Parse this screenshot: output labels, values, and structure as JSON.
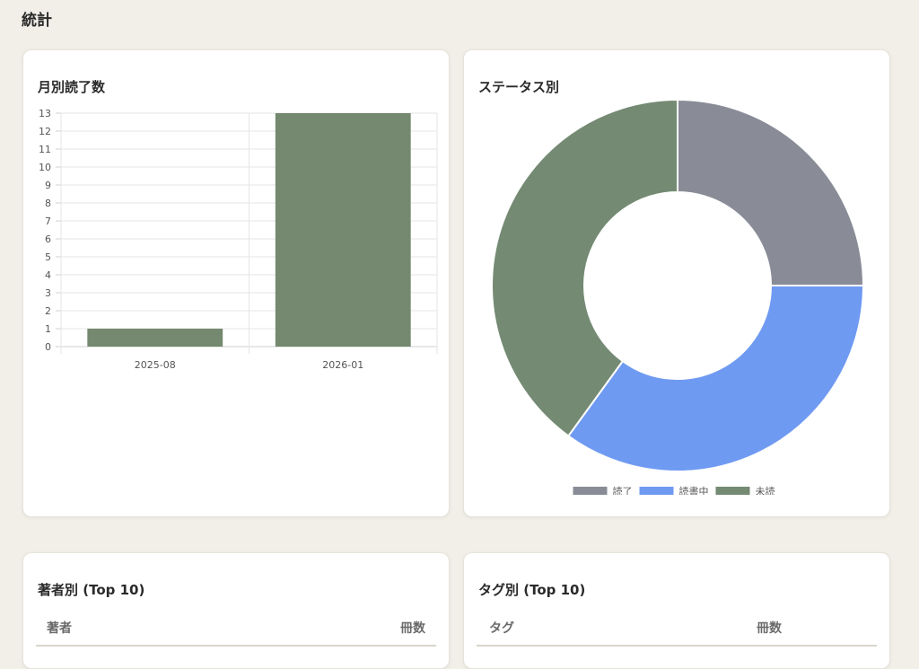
{
  "page": {
    "title": "統計"
  },
  "monthly_card": {
    "title": "月別読了数"
  },
  "status_card": {
    "title": "ステータス別"
  },
  "author_card": {
    "title": "著者別 (Top 10)",
    "columns": [
      "著者",
      "冊数"
    ]
  },
  "tag_card": {
    "title": "タグ別 (Top 10)",
    "columns": [
      "タグ",
      "冊数"
    ]
  },
  "chart_data": [
    {
      "type": "bar",
      "title": "月別読了数",
      "categories": [
        "2025-08",
        "2026-01"
      ],
      "values": [
        1,
        13
      ],
      "ylim": [
        0,
        13
      ],
      "yticks": [
        0,
        1,
        2,
        3,
        4,
        5,
        6,
        7,
        8,
        9,
        10,
        11,
        12,
        13
      ],
      "grid": true,
      "color": "#74896f"
    },
    {
      "type": "pie",
      "subtype": "doughnut",
      "title": "ステータス別",
      "labels": [
        "読了",
        "読書中",
        "未読"
      ],
      "values": [
        25,
        35,
        40
      ],
      "colors": [
        "#898c97",
        "#6f9af2",
        "#748a73"
      ],
      "legend": "bottom"
    }
  ]
}
